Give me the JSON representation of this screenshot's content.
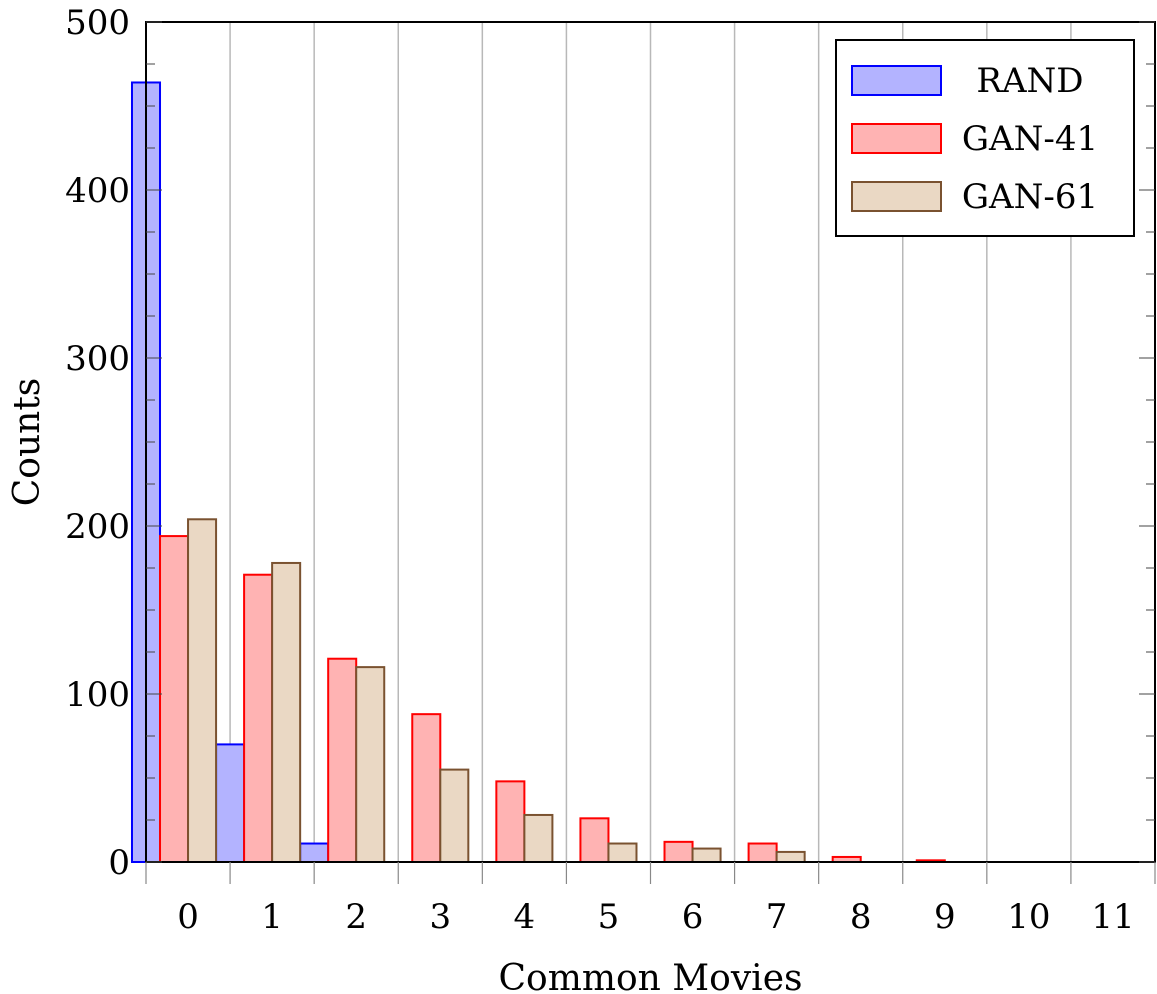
{
  "chart_data": {
    "type": "bar",
    "title": "",
    "xlabel": "Common Movies",
    "ylabel": "Counts",
    "categories": [
      "0",
      "1",
      "2",
      "3",
      "4",
      "5",
      "6",
      "7",
      "8",
      "9",
      "10",
      "11"
    ],
    "ylim": [
      0,
      500
    ],
    "yticks": [
      "0",
      "100",
      "200",
      "300",
      "400",
      "500"
    ],
    "grid": "vertical",
    "legend_position": "top-right",
    "series": [
      {
        "name": "RAND",
        "values": [
          464,
          70,
          11,
          0,
          0,
          0,
          0,
          0,
          0,
          0,
          0,
          0
        ],
        "fill": "#b3b3ff",
        "stroke": "#0000ff"
      },
      {
        "name": "GAN-41",
        "values": [
          194,
          171,
          121,
          88,
          48,
          26,
          12,
          11,
          3,
          1,
          0,
          0
        ],
        "fill": "#ffb3b3",
        "stroke": "#ff0000"
      },
      {
        "name": "GAN-61",
        "values": [
          204,
          178,
          116,
          55,
          28,
          11,
          8,
          6,
          0,
          0,
          0,
          0
        ],
        "fill": "#ead8c4",
        "stroke": "#7a5230"
      }
    ]
  }
}
